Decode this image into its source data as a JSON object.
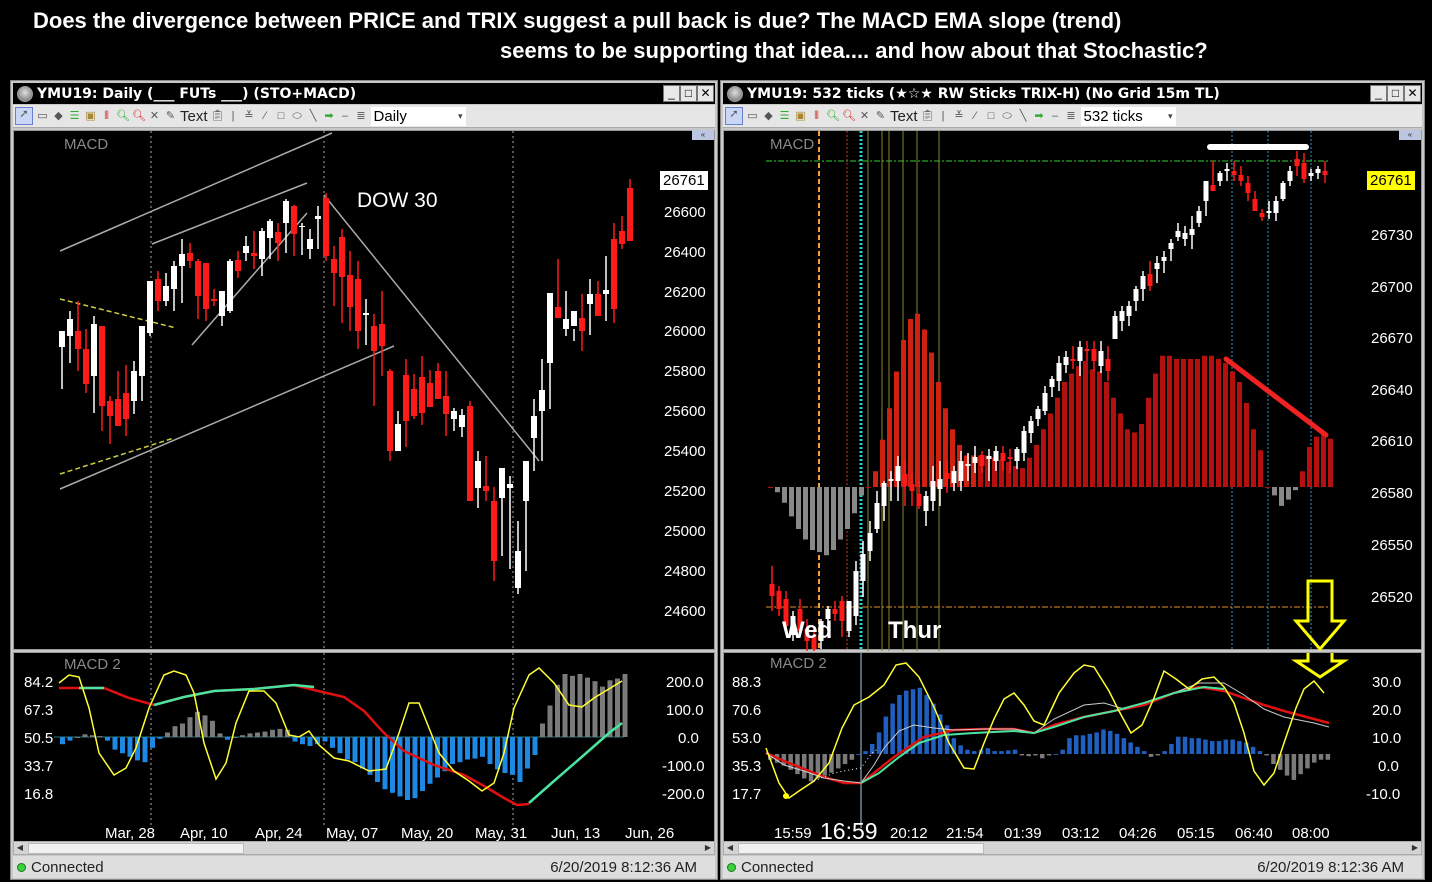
{
  "headline": {
    "line1": "Does the divergence between PRICE and TRIX suggest a pull back is due?  The MACD EMA slope (trend)",
    "line2": "seems to be supporting that idea.... and how about that Stochastic?"
  },
  "left_window": {
    "title": "YMU19: Daily (___ FUTs ___)  (STO+MACD)",
    "window_buttons": [
      "_",
      "□",
      "✕"
    ],
    "toolbar": {
      "icons": [
        "cursor-icon",
        "rectangle-select-icon",
        "eraser-icon",
        "grid-icon",
        "bar-data-icon",
        "bar-type-icon",
        "zoom-in-icon",
        "zoom-out-icon",
        "delete-icon",
        "text-note-icon"
      ],
      "text_label": "Text",
      "icons2": [
        "clipboard-icon",
        "vertical-line-icon",
        "fan-icon",
        "pen-icon",
        "rectangle-icon",
        "ellipse-icon",
        "trendline-icon",
        "arrow-icon",
        "horizontal-line-icon",
        "fibonacci-icon"
      ],
      "interval": "Daily"
    },
    "price_pane": {
      "label": "MACD",
      "annotation": "DOW 30",
      "last_price": "26761",
      "y_axis": [
        "26600",
        "26400",
        "26200",
        "26000",
        "25800",
        "25600",
        "25400",
        "25200",
        "25000",
        "24800",
        "24600"
      ]
    },
    "osc_pane": {
      "label": "MACD 2",
      "left_axis": [
        "84.2",
        "67.3",
        "50.5",
        "33.7",
        "16.8"
      ],
      "right_axis": [
        "200.0",
        "100.0",
        "0.0",
        "-100.0",
        "-200.0"
      ]
    },
    "x_axis": [
      "Mar, 28",
      "Apr, 10",
      "Apr, 24",
      "May, 07",
      "May, 20",
      "May, 31",
      "Jun, 13",
      "Jun, 26"
    ],
    "status": {
      "connection": "Connected",
      "timestamp": "6/20/2019 8:12:36 AM"
    }
  },
  "right_window": {
    "title": "YMU19: 532 ticks (★☆★ RW Sticks TRIX-H) (No Grid 15m TL)",
    "window_buttons": [
      "_",
      "□",
      "✕"
    ],
    "toolbar": {
      "text_label": "Text",
      "interval": "532 ticks"
    },
    "price_pane": {
      "label": "MACD",
      "last_price": "26761",
      "y_axis": [
        "26730",
        "26700",
        "26670",
        "26640",
        "26610",
        "26580",
        "26550",
        "26520"
      ],
      "day_labels": [
        "Wed",
        "Thur"
      ]
    },
    "osc_pane": {
      "label": "MACD 2",
      "left_axis": [
        "88.3",
        "70.6",
        "53.0",
        "35.3",
        "17.7"
      ],
      "right_axis": [
        "30.0",
        "20.0",
        "10.0",
        "0.0",
        "-10.0"
      ]
    },
    "x_axis": [
      "15:59",
      "16:59",
      "20:12",
      "21:54",
      "01:39",
      "03:12",
      "04:26",
      "05:15",
      "06:40",
      "08:00"
    ],
    "cursor_time": "16:59",
    "status": {
      "connection": "Connected",
      "timestamp": "6/20/2019 8:12:36 AM"
    }
  },
  "colors": {
    "up_candle": "#ffffff",
    "down_candle": "#ff0000",
    "trix_hist": "#c00000",
    "macd_hist_neg": "#1e88e5",
    "macd_hist_pos_gray": "#808080",
    "stochastic": "#ffff33",
    "signal_up": "#4be3a0",
    "signal_down": "#e01010",
    "annotation_arrow": "#ffff00",
    "last_price_badge_right": "#ffff00"
  }
}
